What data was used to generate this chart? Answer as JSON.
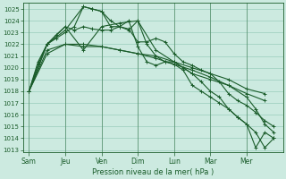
{
  "bg_color": "#cceae0",
  "grid_color": "#99ccbb",
  "line_color": "#1a5c2a",
  "xlabel": "Pression niveau de la mer( hPa )",
  "x_labels": [
    "Sam",
    "Jeu",
    "Ven",
    "Dim",
    "Lun",
    "Mar",
    "Mer"
  ],
  "x_ticks": [
    0,
    24,
    48,
    72,
    96,
    120,
    144
  ],
  "ylim_min": 1013,
  "ylim_max": 1025.5,
  "yticks": [
    1013,
    1014,
    1015,
    1016,
    1017,
    1018,
    1019,
    1020,
    1021,
    1022,
    1023,
    1024,
    1025
  ],
  "series": [
    {
      "x": [
        0,
        6,
        12,
        18,
        24,
        30,
        36,
        42,
        48,
        54,
        60,
        66,
        72,
        78,
        84,
        90,
        96,
        102,
        108,
        114,
        120,
        126,
        132,
        138,
        144,
        150,
        156,
        162
      ],
      "y": [
        1018.0,
        1020.3,
        1022.0,
        1022.5,
        1023.0,
        1023.5,
        1025.2,
        1025.0,
        1024.8,
        1024.0,
        1023.5,
        1024.0,
        1021.8,
        1020.5,
        1020.2,
        1020.5,
        1020.3,
        1019.8,
        1018.5,
        1018.0,
        1017.5,
        1017.0,
        1016.5,
        1015.8,
        1015.2,
        1014.5,
        1013.2,
        1014.0
      ]
    },
    {
      "x": [
        0,
        6,
        12,
        18,
        24,
        30,
        36,
        42,
        48,
        54,
        60,
        66,
        72,
        78,
        84,
        90,
        96,
        102,
        108,
        114,
        120,
        126,
        132,
        138,
        144,
        150,
        156,
        162
      ],
      "y": [
        1018.0,
        1020.5,
        1022.0,
        1022.8,
        1023.5,
        1023.2,
        1023.5,
        1023.3,
        1023.2,
        1023.2,
        1023.5,
        1023.3,
        1022.2,
        1022.2,
        1022.5,
        1022.2,
        1021.2,
        1020.5,
        1020.2,
        1019.8,
        1019.5,
        1018.8,
        1017.8,
        1017.2,
        1016.8,
        1016.2,
        1015.5,
        1015.0
      ]
    },
    {
      "x": [
        0,
        12,
        24,
        36,
        48,
        60,
        72,
        84,
        96,
        108,
        120,
        132,
        144,
        156
      ],
      "y": [
        1018.0,
        1021.2,
        1022.0,
        1021.8,
        1021.8,
        1021.5,
        1021.2,
        1021.0,
        1020.5,
        1020.0,
        1019.5,
        1019.0,
        1018.2,
        1017.8
      ]
    },
    {
      "x": [
        0,
        12,
        24,
        36,
        48,
        60,
        72,
        84,
        96,
        108,
        120,
        132,
        144,
        156
      ],
      "y": [
        1018.0,
        1021.5,
        1022.0,
        1022.0,
        1021.8,
        1021.5,
        1021.2,
        1020.8,
        1020.3,
        1019.8,
        1019.2,
        1018.5,
        1017.8,
        1017.2
      ]
    }
  ],
  "series_volatile": [
    {
      "x": [
        0,
        12,
        24,
        36,
        42,
        48,
        54,
        60,
        66,
        72,
        78,
        84,
        90,
        96,
        102,
        108,
        114,
        120,
        126,
        132,
        138,
        144,
        150,
        156,
        162
      ],
      "y": [
        1018.0,
        1022.0,
        1023.2,
        1025.2,
        1025.0,
        1024.8,
        1023.5,
        1023.5,
        1023.2,
        1024.0,
        1022.0,
        1021.0,
        1020.5,
        1020.5,
        1020.0,
        1019.5,
        1018.8,
        1018.0,
        1017.5,
        1016.5,
        1015.8,
        1015.2,
        1013.2,
        1014.5,
        1014.0
      ]
    },
    {
      "x": [
        0,
        12,
        24,
        36,
        48,
        60,
        72,
        84,
        96,
        108,
        120,
        132,
        144,
        150,
        156,
        162
      ],
      "y": [
        1018.0,
        1022.0,
        1023.5,
        1021.5,
        1023.5,
        1023.8,
        1024.0,
        1021.5,
        1020.5,
        1019.5,
        1019.0,
        1018.5,
        1017.5,
        1016.5,
        1015.2,
        1014.5
      ]
    }
  ]
}
